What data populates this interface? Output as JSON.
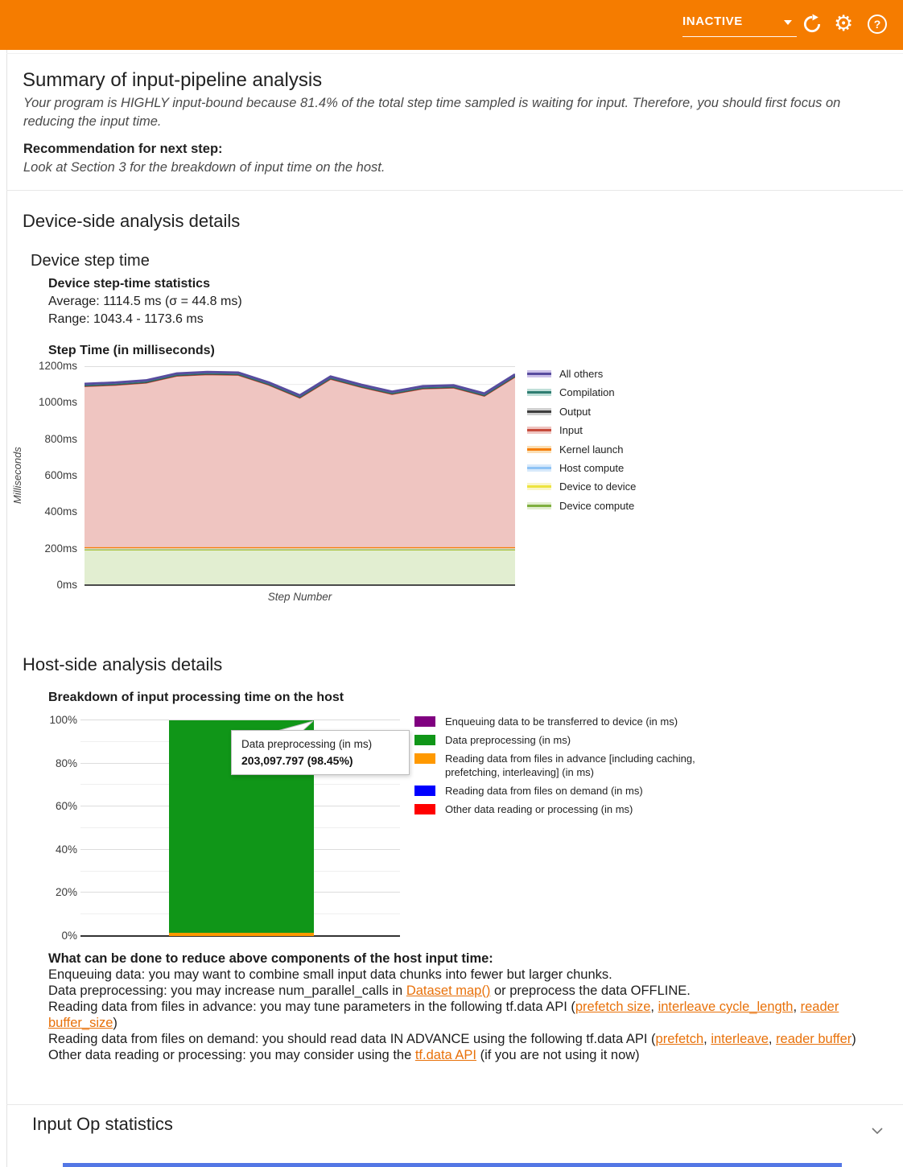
{
  "header": {
    "run_status": "INACTIVE",
    "icons": {
      "gear_glyph": "⚙",
      "help_glyph": "?"
    },
    "bg_color": "#F57C00"
  },
  "summary": {
    "title": "Summary of input-pipeline analysis",
    "body": "Your program is HIGHLY input-bound because 81.4% of the total step time sampled is waiting for input. Therefore, you should first focus on reducing the input time.",
    "recommendation_label": "Recommendation for next step:",
    "recommendation": "Look at Section 3 for the breakdown of input time on the host."
  },
  "device_side": {
    "title": "Device-side analysis details",
    "subtitle": "Device step time",
    "stats_title": "Device step-time statistics",
    "average": "Average: 1114.5 ms (σ = 44.8 ms)",
    "range": "Range: 1043.4 - 1173.6 ms"
  },
  "host_side": {
    "title": "Host-side analysis details",
    "advice_title": "What can be done to reduce above components of the host input time:",
    "advice_items": [
      [
        {
          "t": "Enqueuing data: you may want to combine small input data chunks into fewer but larger chunks."
        }
      ],
      [
        {
          "t": "Data preprocessing: you may increase num_parallel_calls in "
        },
        {
          "t": "Dataset map()",
          "link": true
        },
        {
          "t": " or preprocess the data OFFLINE."
        }
      ],
      [
        {
          "t": "Reading data from files in advance: you may tune parameters in the following tf.data API ("
        },
        {
          "t": "prefetch size",
          "link": true
        },
        {
          "t": ", "
        },
        {
          "t": "interleave cycle_length",
          "link": true
        },
        {
          "t": ", "
        },
        {
          "t": "reader buffer_size",
          "link": true
        },
        {
          "t": ")"
        }
      ],
      [
        {
          "t": "Reading data from files on demand: you should read data IN ADVANCE using the following tf.data API ("
        },
        {
          "t": "prefetch",
          "link": true
        },
        {
          "t": ", "
        },
        {
          "t": "interleave",
          "link": true
        },
        {
          "t": ", "
        },
        {
          "t": "reader buffer",
          "link": true
        },
        {
          "t": ")"
        }
      ],
      [
        {
          "t": "Other data reading or processing: you may consider using the "
        },
        {
          "t": "tf.data API",
          "link": true
        },
        {
          "t": " (if you are not using it now)"
        }
      ]
    ],
    "link_color": "#E8710A"
  },
  "input_op": {
    "title": "Input Op statistics"
  },
  "chart_data": [
    {
      "type": "area",
      "title": "Step Time (in milliseconds)",
      "xlabel": "Step Number",
      "ylabel": "Milliseconds",
      "ylim": [
        0,
        1200
      ],
      "yticks": [
        0,
        200,
        400,
        600,
        800,
        1000,
        1200
      ],
      "ytick_labels": [
        "0ms",
        "200ms",
        "400ms",
        "600ms",
        "800ms",
        "1000ms",
        "1200ms"
      ],
      "grid": true,
      "legend_position": "right",
      "legend_order": [
        "All others",
        "Compilation",
        "Output",
        "Input",
        "Kernel launch",
        "Host compute",
        "Device to device",
        "Device compute"
      ],
      "series": [
        {
          "name": "Device compute",
          "line": "#7FAF3F",
          "fill": "#E2EED1",
          "values": [
            194,
            194,
            194,
            194,
            194,
            194,
            194,
            194,
            194,
            194,
            194,
            194,
            194,
            194,
            194
          ]
        },
        {
          "name": "Device to device",
          "line": "#EDE33E",
          "fill": "#FAF6C8",
          "values": [
            3,
            3,
            3,
            3,
            3,
            3,
            3,
            3,
            3,
            3,
            3,
            3,
            3,
            3,
            3
          ]
        },
        {
          "name": "Host compute",
          "line": "#8FC3F5",
          "fill": "#D7E9FB",
          "values": [
            2,
            2,
            2,
            2,
            2,
            2,
            2,
            2,
            2,
            2,
            2,
            2,
            2,
            2,
            2
          ]
        },
        {
          "name": "Kernel launch",
          "line": "#F57E0A",
          "fill": "#FBDFB4",
          "values": [
            9,
            9,
            9,
            9,
            9,
            9,
            9,
            9,
            9,
            9,
            9,
            9,
            9,
            9,
            9
          ]
        },
        {
          "name": "Input",
          "line": "#C64B3C",
          "fill": "#EFC5C1",
          "values": [
            882,
            889,
            901,
            939,
            947,
            944,
            889,
            819,
            922,
            877,
            839,
            869,
            874,
            829,
            934
          ]
        },
        {
          "name": "Output",
          "line": "#3D3D3D",
          "fill": "#CFCFCF",
          "values": [
            3,
            3,
            3,
            3,
            3,
            3,
            3,
            3,
            3,
            3,
            3,
            3,
            3,
            3,
            3
          ]
        },
        {
          "name": "Compilation",
          "line": "#2E7D71",
          "fill": "#BFDFD8",
          "values": [
            4,
            4,
            4,
            4,
            4,
            4,
            4,
            4,
            4,
            4,
            4,
            4,
            4,
            4,
            4
          ]
        },
        {
          "name": "All others",
          "line": "#584C9F",
          "fill": "#CDC2E9",
          "values": [
            6,
            6,
            6,
            6,
            6,
            6,
            6,
            6,
            6,
            6,
            6,
            6,
            6,
            6,
            6
          ]
        }
      ]
    },
    {
      "type": "bar",
      "title": "Breakdown of input processing time on the host",
      "ylim": [
        0,
        100
      ],
      "yticks": [
        0,
        20,
        40,
        60,
        80,
        100
      ],
      "ytick_labels": [
        "0%",
        "20%",
        "40%",
        "60%",
        "80%",
        "100%"
      ],
      "grid": true,
      "legend_position": "right",
      "series": [
        {
          "name": "Enqueuing data to be transferred to device (in ms)",
          "color": "#800080",
          "value": 0
        },
        {
          "name": "Data preprocessing (in ms)",
          "color": "#109618",
          "value": 98.45
        },
        {
          "name": "Reading data from files in advance [including caching, prefetching, interleaving] (in ms)",
          "color": "#FF9900",
          "value": 1.55
        },
        {
          "name": "Reading data from files on demand (in ms)",
          "color": "#0000FF",
          "value": 0
        },
        {
          "name": "Other data reading or processing (in ms)",
          "color": "#FF0000",
          "value": 0
        }
      ],
      "bar_segments": [
        {
          "name": "Reading data from files in advance [including caching, prefetching, interleaving] (in ms)",
          "color": "#FF9900",
          "percent": 1.55
        },
        {
          "name": "Data preprocessing (in ms)",
          "color": "#109618",
          "percent": 98.45
        }
      ],
      "tooltip": {
        "label": "Data preprocessing (in ms)",
        "value": "203,097.797 (98.45%)"
      }
    }
  ]
}
